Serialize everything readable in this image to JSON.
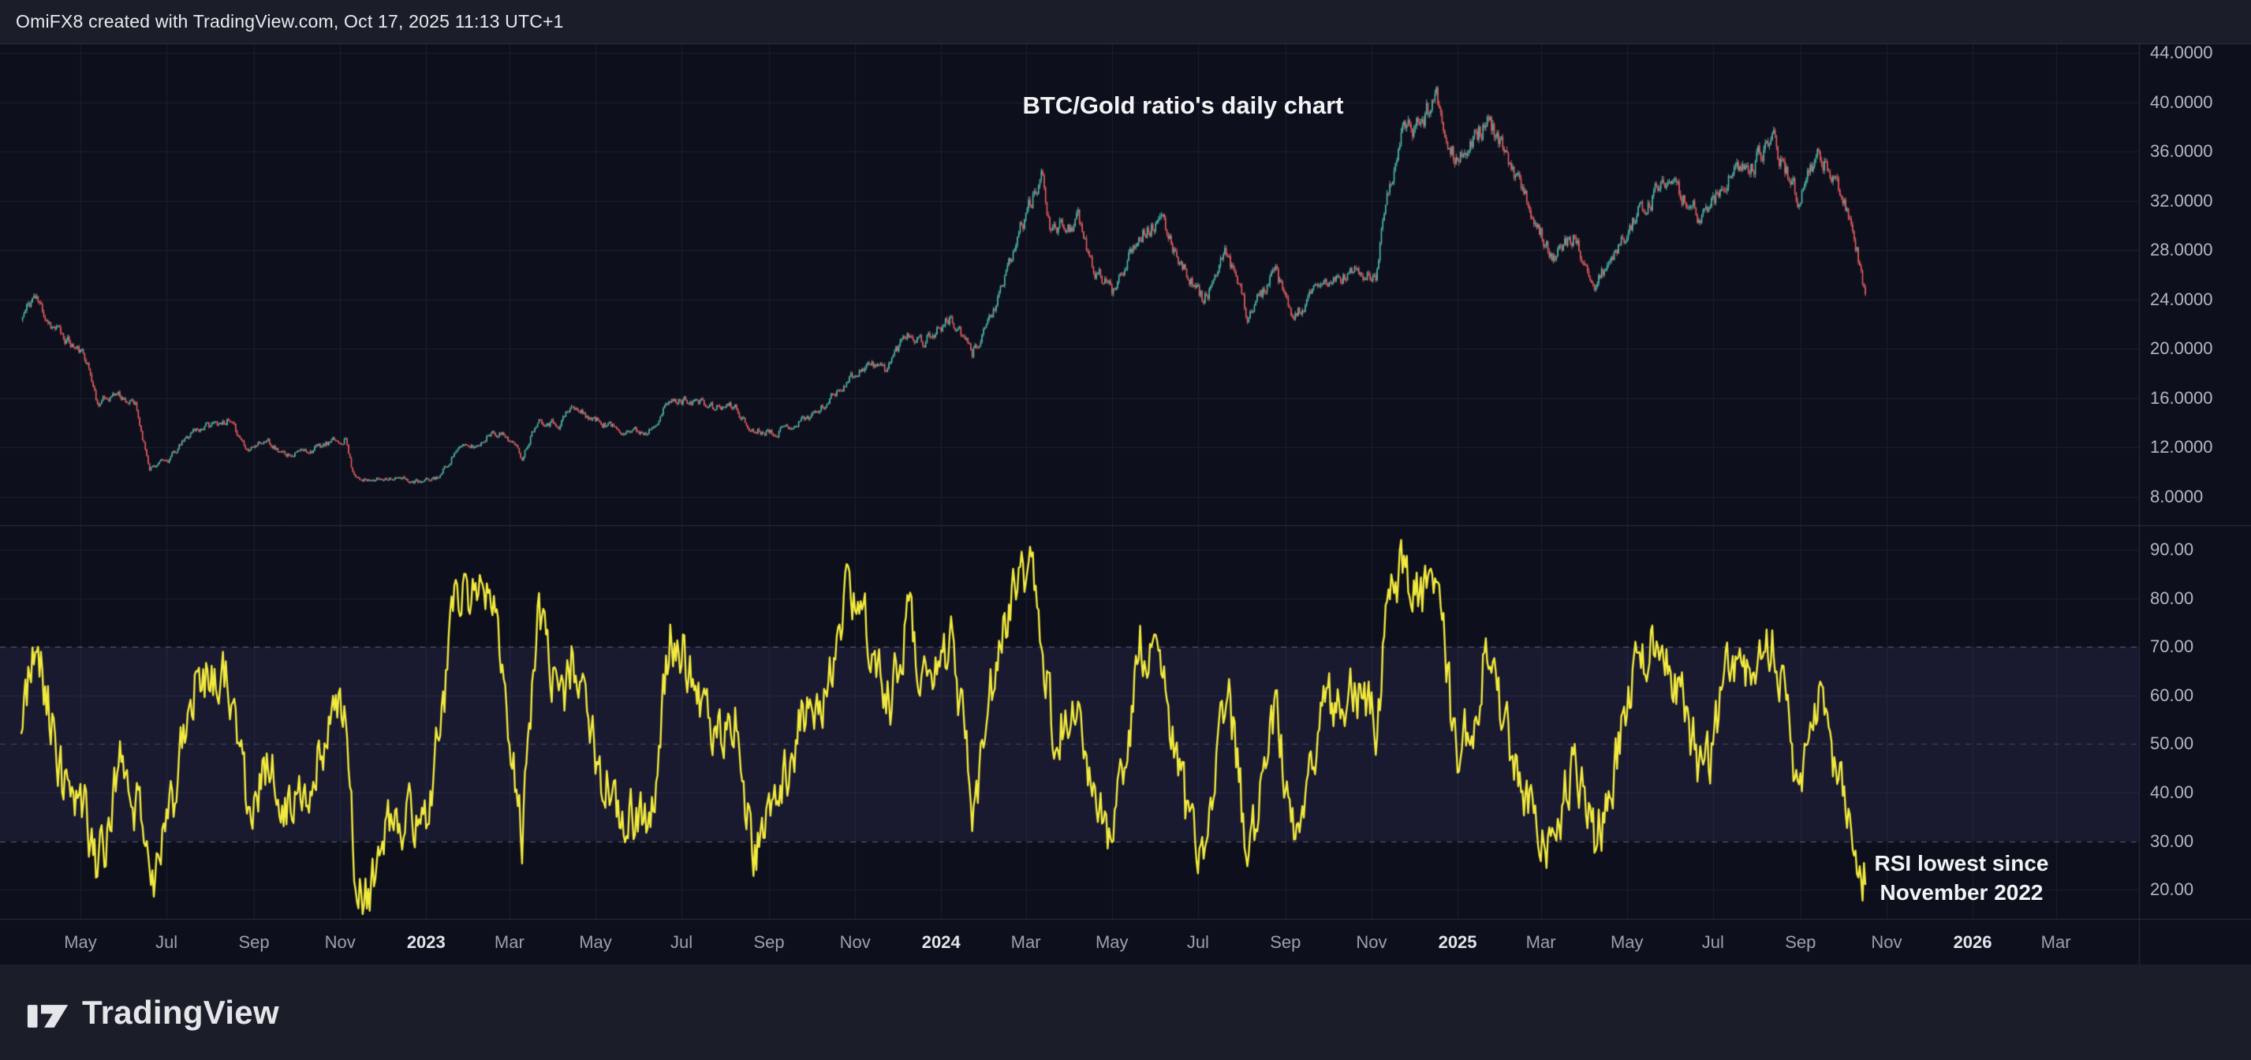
{
  "header": {
    "credit": "OmiFX8 created with TradingView.com, Oct 17, 2025 11:13 UTC+1"
  },
  "footer": {
    "brand_name": "TradingView"
  },
  "annotations": {
    "main": "BTC/Gold ratio's daily chart",
    "rsi_line1": "RSI lowest since",
    "rsi_line2": "November 2022"
  },
  "colors": {
    "outer_bg": "#1b1e28",
    "chart_bg": "#0d101c",
    "grid": "#1a2030",
    "border": "#2a2f3e",
    "axis_text": "#b4b7c1",
    "axis_year_text": "#e3e5ea",
    "time_text": "#9ba0ab",
    "candle_up": "#4db6aa",
    "candle_down": "#e25b5e",
    "rsi_line": "#f2e93e",
    "rsi_band_fill": "rgba(116,102,192,0.12)",
    "rsi_level_line": "rgba(168,173,194,0.5)",
    "rsi_mid_line": "rgba(168,173,194,0.3)",
    "annotation_text": "#f2f3f5",
    "header_text": "#e9eaee",
    "brand_text": "#e4e6ea"
  },
  "chart_data": {
    "type": "candlestick",
    "title": "BTC/Gold ratio's daily chart",
    "symbol": "BTC/Gold ratio",
    "interval": "daily",
    "grid": "on",
    "price_pane": {
      "ticks": [
        {
          "label": "44.0000",
          "value": 44
        },
        {
          "label": "40.0000",
          "value": 40
        },
        {
          "label": "36.0000",
          "value": 36
        },
        {
          "label": "32.0000",
          "value": 32
        },
        {
          "label": "28.0000",
          "value": 28
        },
        {
          "label": "24.0000",
          "value": 24
        },
        {
          "label": "20.0000",
          "value": 20
        },
        {
          "label": "16.0000",
          "value": 16
        },
        {
          "label": "12.0000",
          "value": 12
        },
        {
          "label": "8.0000",
          "value": 8
        }
      ]
    },
    "rsi_pane": {
      "indicator": "RSI",
      "band": [
        30,
        70
      ],
      "levels": [
        70,
        50,
        30
      ],
      "ticks": [
        {
          "label": "90.00",
          "value": 90
        },
        {
          "label": "80.00",
          "value": 80
        },
        {
          "label": "70.00",
          "value": 70
        },
        {
          "label": "60.00",
          "value": 60
        },
        {
          "label": "50.00",
          "value": 50
        },
        {
          "label": "40.00",
          "value": 40
        },
        {
          "label": "30.00",
          "value": 30
        },
        {
          "label": "20.00",
          "value": 20
        }
      ]
    },
    "x_axis": {
      "labels": [
        {
          "label": "May",
          "date": "2022-05-01",
          "kind": "month"
        },
        {
          "label": "Jul",
          "date": "2022-07-01",
          "kind": "month"
        },
        {
          "label": "Sep",
          "date": "2022-09-01",
          "kind": "month"
        },
        {
          "label": "Nov",
          "date": "2022-11-01",
          "kind": "month"
        },
        {
          "label": "2023",
          "date": "2023-01-01",
          "kind": "year"
        },
        {
          "label": "Mar",
          "date": "2023-03-01",
          "kind": "month"
        },
        {
          "label": "May",
          "date": "2023-05-01",
          "kind": "month"
        },
        {
          "label": "Jul",
          "date": "2023-07-01",
          "kind": "month"
        },
        {
          "label": "Sep",
          "date": "2023-09-01",
          "kind": "month"
        },
        {
          "label": "Nov",
          "date": "2023-11-01",
          "kind": "month"
        },
        {
          "label": "2024",
          "date": "2024-01-01",
          "kind": "year"
        },
        {
          "label": "Mar",
          "date": "2024-03-01",
          "kind": "month"
        },
        {
          "label": "May",
          "date": "2024-05-01",
          "kind": "month"
        },
        {
          "label": "Jul",
          "date": "2024-07-01",
          "kind": "month"
        },
        {
          "label": "Sep",
          "date": "2024-09-01",
          "kind": "month"
        },
        {
          "label": "Nov",
          "date": "2024-11-01",
          "kind": "month"
        },
        {
          "label": "2025",
          "date": "2025-01-01",
          "kind": "year"
        },
        {
          "label": "Mar",
          "date": "2025-03-01",
          "kind": "month"
        },
        {
          "label": "May",
          "date": "2025-05-01",
          "kind": "month"
        },
        {
          "label": "Jul",
          "date": "2025-07-01",
          "kind": "month"
        },
        {
          "label": "Sep",
          "date": "2025-09-01",
          "kind": "month"
        },
        {
          "label": "Nov",
          "date": "2025-11-01",
          "kind": "month"
        },
        {
          "label": "2026",
          "date": "2026-01-01",
          "kind": "year"
        },
        {
          "label": "Mar",
          "date": "2026-03-01",
          "kind": "month"
        }
      ]
    },
    "data_start": "2022-03-20",
    "data_end": "2025-10-17",
    "last_close": 24.4,
    "series": [
      {
        "name": "BTC/Gold ratio close (waypoints read from chart)",
        "type": "candlestick",
        "points": [
          [
            "2022-03-20",
            22.3
          ],
          [
            "2022-03-29",
            24.3
          ],
          [
            "2022-04-10",
            22.0
          ],
          [
            "2022-04-22",
            20.6
          ],
          [
            "2022-05-05",
            19.3
          ],
          [
            "2022-05-13",
            15.6
          ],
          [
            "2022-05-27",
            16.4
          ],
          [
            "2022-06-09",
            15.3
          ],
          [
            "2022-06-19",
            10.4
          ],
          [
            "2022-07-02",
            10.9
          ],
          [
            "2022-07-20",
            13.4
          ],
          [
            "2022-08-13",
            14.2
          ],
          [
            "2022-08-28",
            11.9
          ],
          [
            "2022-09-11",
            12.6
          ],
          [
            "2022-09-21",
            11.4
          ],
          [
            "2022-10-09",
            11.7
          ],
          [
            "2022-10-27",
            12.4
          ],
          [
            "2022-11-05",
            12.7
          ],
          [
            "2022-11-10",
            9.9
          ],
          [
            "2022-11-21",
            9.2
          ],
          [
            "2022-12-05",
            9.6
          ],
          [
            "2022-12-29",
            9.1
          ],
          [
            "2023-01-11",
            9.7
          ],
          [
            "2023-01-23",
            11.9
          ],
          [
            "2023-02-07",
            12.1
          ],
          [
            "2023-02-17",
            13.4
          ],
          [
            "2023-03-01",
            12.7
          ],
          [
            "2023-03-10",
            11.2
          ],
          [
            "2023-03-21",
            14.3
          ],
          [
            "2023-04-05",
            13.9
          ],
          [
            "2023-04-14",
            15.2
          ],
          [
            "2023-05-01",
            14.2
          ],
          [
            "2023-05-17",
            13.5
          ],
          [
            "2023-06-06",
            13.2
          ],
          [
            "2023-06-22",
            15.6
          ],
          [
            "2023-07-07",
            15.9
          ],
          [
            "2023-07-24",
            15.2
          ],
          [
            "2023-08-08",
            15.3
          ],
          [
            "2023-08-18",
            13.4
          ],
          [
            "2023-09-07",
            13.3
          ],
          [
            "2023-09-21",
            14.0
          ],
          [
            "2023-10-07",
            15.0
          ],
          [
            "2023-10-24",
            17.2
          ],
          [
            "2023-11-09",
            18.7
          ],
          [
            "2023-11-23",
            18.4
          ],
          [
            "2023-12-08",
            21.4
          ],
          [
            "2023-12-19",
            20.6
          ],
          [
            "2024-01-08",
            22.4
          ],
          [
            "2024-01-23",
            19.6
          ],
          [
            "2024-02-12",
            24.3
          ],
          [
            "2024-02-27",
            30.1
          ],
          [
            "2024-03-13",
            33.9
          ],
          [
            "2024-03-19",
            29.6
          ],
          [
            "2024-04-07",
            30.3
          ],
          [
            "2024-04-17",
            26.6
          ],
          [
            "2024-05-01",
            24.7
          ],
          [
            "2024-05-20",
            29.4
          ],
          [
            "2024-06-05",
            30.2
          ],
          [
            "2024-06-24",
            26.0
          ],
          [
            "2024-07-05",
            23.9
          ],
          [
            "2024-07-22",
            27.8
          ],
          [
            "2024-08-05",
            22.7
          ],
          [
            "2024-08-25",
            26.1
          ],
          [
            "2024-09-06",
            22.4
          ],
          [
            "2024-09-26",
            25.1
          ],
          [
            "2024-10-20",
            26.2
          ],
          [
            "2024-11-04",
            25.6
          ],
          [
            "2024-11-12",
            32.8
          ],
          [
            "2024-11-22",
            37.1
          ],
          [
            "2024-12-05",
            38.4
          ],
          [
            "2024-12-17",
            40.4
          ],
          [
            "2024-12-30",
            35.6
          ],
          [
            "2025-01-09",
            35.9
          ],
          [
            "2025-01-21",
            38.6
          ],
          [
            "2025-02-03",
            35.8
          ],
          [
            "2025-02-25",
            30.4
          ],
          [
            "2025-03-10",
            27.6
          ],
          [
            "2025-03-24",
            28.9
          ],
          [
            "2025-04-08",
            25.2
          ],
          [
            "2025-04-22",
            27.4
          ],
          [
            "2025-05-09",
            31.2
          ],
          [
            "2025-05-26",
            33.1
          ],
          [
            "2025-06-10",
            32.4
          ],
          [
            "2025-06-23",
            30.6
          ],
          [
            "2025-07-10",
            33.6
          ],
          [
            "2025-07-28",
            34.8
          ],
          [
            "2025-08-13",
            36.8
          ],
          [
            "2025-08-30",
            32.4
          ],
          [
            "2025-09-13",
            35.5
          ],
          [
            "2025-09-26",
            33.8
          ],
          [
            "2025-10-06",
            30.3
          ],
          [
            "2025-10-12",
            27.4
          ],
          [
            "2025-10-17",
            24.4
          ]
        ]
      },
      {
        "name": "RSI (waypoints read from chart)",
        "type": "line",
        "points": [
          [
            "2022-03-20",
            56
          ],
          [
            "2022-04-01",
            70
          ],
          [
            "2022-04-18",
            42
          ],
          [
            "2022-05-02",
            38
          ],
          [
            "2022-05-14",
            24
          ],
          [
            "2022-05-30",
            46
          ],
          [
            "2022-06-11",
            36
          ],
          [
            "2022-06-19",
            19
          ],
          [
            "2022-07-04",
            36
          ],
          [
            "2022-07-21",
            63
          ],
          [
            "2022-08-13",
            66
          ],
          [
            "2022-08-29",
            36
          ],
          [
            "2022-09-12",
            48
          ],
          [
            "2022-09-22",
            35
          ],
          [
            "2022-10-10",
            44
          ],
          [
            "2022-10-30",
            54
          ],
          [
            "2022-11-06",
            57
          ],
          [
            "2022-11-12",
            22
          ],
          [
            "2022-11-22",
            17
          ],
          [
            "2022-12-10",
            38
          ],
          [
            "2022-12-30",
            31
          ],
          [
            "2023-01-14",
            58
          ],
          [
            "2023-01-23",
            83
          ],
          [
            "2023-02-04",
            78
          ],
          [
            "2023-02-16",
            82
          ],
          [
            "2023-02-26",
            60
          ],
          [
            "2023-03-10",
            32
          ],
          [
            "2023-03-22",
            76
          ],
          [
            "2023-04-08",
            58
          ],
          [
            "2023-04-15",
            70
          ],
          [
            "2023-05-05",
            44
          ],
          [
            "2023-05-20",
            37
          ],
          [
            "2023-06-08",
            34
          ],
          [
            "2023-06-24",
            73
          ],
          [
            "2023-07-10",
            64
          ],
          [
            "2023-07-25",
            50
          ],
          [
            "2023-08-10",
            55
          ],
          [
            "2023-08-20",
            27
          ],
          [
            "2023-09-06",
            36
          ],
          [
            "2023-09-24",
            54
          ],
          [
            "2023-10-10",
            60
          ],
          [
            "2023-10-26",
            80
          ],
          [
            "2023-11-10",
            73
          ],
          [
            "2023-11-26",
            58
          ],
          [
            "2023-12-09",
            77
          ],
          [
            "2023-12-22",
            60
          ],
          [
            "2024-01-09",
            70
          ],
          [
            "2024-01-24",
            36
          ],
          [
            "2024-02-13",
            74
          ],
          [
            "2024-02-28",
            85
          ],
          [
            "2024-03-06",
            88
          ],
          [
            "2024-03-20",
            52
          ],
          [
            "2024-04-08",
            60
          ],
          [
            "2024-04-19",
            36
          ],
          [
            "2024-05-02",
            31
          ],
          [
            "2024-05-21",
            69
          ],
          [
            "2024-06-06",
            64
          ],
          [
            "2024-06-25",
            31
          ],
          [
            "2024-07-06",
            27
          ],
          [
            "2024-07-22",
            63
          ],
          [
            "2024-08-06",
            24
          ],
          [
            "2024-08-25",
            58
          ],
          [
            "2024-09-07",
            30
          ],
          [
            "2024-09-27",
            56
          ],
          [
            "2024-10-20",
            62
          ],
          [
            "2024-11-05",
            54
          ],
          [
            "2024-11-13",
            79
          ],
          [
            "2024-11-22",
            87
          ],
          [
            "2024-12-06",
            78
          ],
          [
            "2024-12-17",
            84
          ],
          [
            "2024-12-31",
            46
          ],
          [
            "2025-01-11",
            54
          ],
          [
            "2025-01-22",
            71
          ],
          [
            "2025-02-05",
            52
          ],
          [
            "2025-02-26",
            31
          ],
          [
            "2025-03-11",
            30
          ],
          [
            "2025-03-25",
            48
          ],
          [
            "2025-04-09",
            29
          ],
          [
            "2025-04-23",
            46
          ],
          [
            "2025-05-10",
            68
          ],
          [
            "2025-05-27",
            71
          ],
          [
            "2025-06-11",
            58
          ],
          [
            "2025-06-24",
            41
          ],
          [
            "2025-07-11",
            64
          ],
          [
            "2025-07-29",
            67
          ],
          [
            "2025-08-14",
            71
          ],
          [
            "2025-08-31",
            38
          ],
          [
            "2025-09-15",
            62
          ],
          [
            "2025-09-27",
            44
          ],
          [
            "2025-10-07",
            32
          ],
          [
            "2025-10-13",
            26
          ],
          [
            "2025-10-17",
            21
          ]
        ]
      }
    ]
  }
}
